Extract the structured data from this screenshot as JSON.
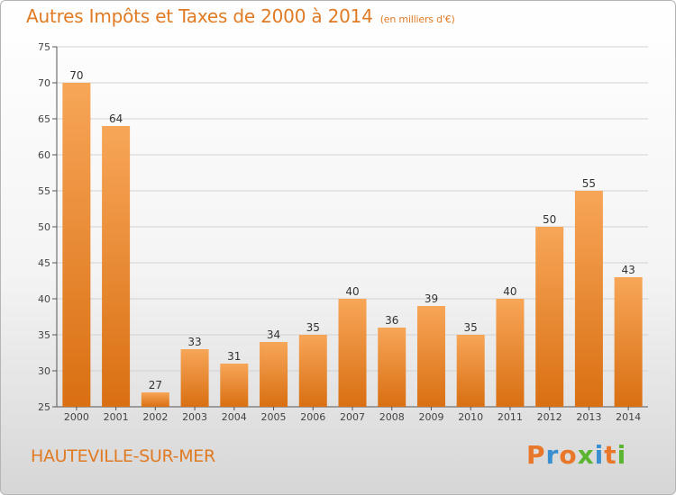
{
  "header": {
    "title": "Autres Impôts et Taxes de 2000 à 2014",
    "unit": "(en milliers d'€)"
  },
  "footer": {
    "city": "HAUTEVILLE-SUR-MER",
    "logo_text": "Proxiti"
  },
  "colors": {
    "accent": "#e07b24",
    "bar_top": "#f7a658",
    "bar_bottom": "#d96f12",
    "logo": [
      "#e8772a",
      "#3a8fd0",
      "#e8772a",
      "#5cb531",
      "#3a8fd0",
      "#e8772a",
      "#5cb531"
    ]
  },
  "chart_data": {
    "type": "bar",
    "title": "Autres Impôts et Taxes de 2000 à 2014",
    "categories": [
      "2000",
      "2001",
      "2002",
      "2003",
      "2004",
      "2005",
      "2006",
      "2007",
      "2008",
      "2009",
      "2010",
      "2011",
      "2012",
      "2013",
      "2014"
    ],
    "values": [
      70,
      64,
      27,
      33,
      31,
      34,
      35,
      40,
      36,
      39,
      35,
      40,
      50,
      55,
      43
    ],
    "ylim": [
      25,
      75
    ],
    "yticks": [
      25,
      30,
      35,
      40,
      45,
      50,
      55,
      60,
      65,
      70,
      75
    ],
    "grid": true,
    "data_labels": true
  }
}
